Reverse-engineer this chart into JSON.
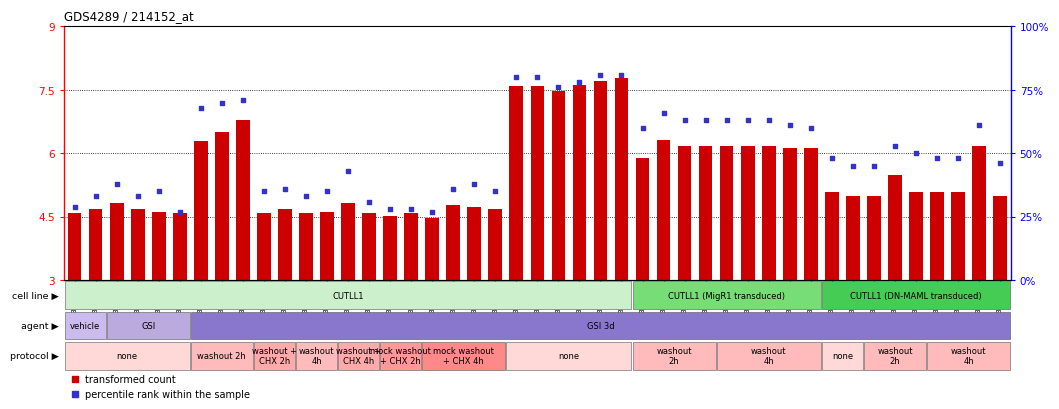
{
  "title": "GDS4289 / 214152_at",
  "ylim": [
    3,
    9
  ],
  "yticks": [
    3,
    4.5,
    6,
    7.5,
    9
  ],
  "ytick_labels": [
    "3",
    "4.5",
    "6",
    "7.5",
    "9"
  ],
  "right_yticks": [
    0,
    25,
    50,
    75,
    100
  ],
  "right_ytick_labels": [
    "0%",
    "25%",
    "50%",
    "75%",
    "100%"
  ],
  "samples": [
    "GSM731500",
    "GSM731501",
    "GSM731502",
    "GSM731503",
    "GSM731504",
    "GSM731505",
    "GSM731518",
    "GSM731519",
    "GSM731520",
    "GSM731506",
    "GSM731507",
    "GSM731508",
    "GSM731509",
    "GSM731510",
    "GSM731511",
    "GSM731512",
    "GSM731513",
    "GSM731514",
    "GSM731515",
    "GSM731516",
    "GSM731517",
    "GSM731521",
    "GSM731522",
    "GSM731523",
    "GSM731524",
    "GSM731525",
    "GSM731526",
    "GSM731527",
    "GSM731528",
    "GSM731529",
    "GSM731531",
    "GSM731532",
    "GSM731533",
    "GSM731534",
    "GSM731535",
    "GSM731536",
    "GSM731537",
    "GSM731538",
    "GSM731539",
    "GSM731540",
    "GSM731541",
    "GSM731542",
    "GSM731543",
    "GSM731544",
    "GSM731545"
  ],
  "bar_values": [
    4.58,
    4.68,
    4.82,
    4.68,
    4.62,
    4.58,
    6.28,
    6.5,
    6.78,
    4.58,
    4.68,
    4.58,
    4.62,
    4.82,
    4.58,
    4.52,
    4.58,
    4.48,
    4.78,
    4.72,
    4.68,
    7.58,
    7.58,
    7.48,
    7.62,
    7.72,
    7.78,
    5.88,
    6.32,
    6.18,
    6.18,
    6.18,
    6.18,
    6.18,
    6.12,
    6.12,
    5.08,
    4.98,
    4.98,
    5.48,
    5.08,
    5.08,
    5.08,
    6.18,
    4.98
  ],
  "percentile_values": [
    29,
    33,
    38,
    33,
    35,
    27,
    68,
    70,
    71,
    35,
    36,
    33,
    35,
    43,
    31,
    28,
    28,
    27,
    36,
    38,
    35,
    80,
    80,
    76,
    78,
    81,
    81,
    60,
    66,
    63,
    63,
    63,
    63,
    63,
    61,
    60,
    48,
    45,
    45,
    53,
    50,
    48,
    48,
    61,
    46
  ],
  "bar_color": "#cc0000",
  "percentile_color": "#3333cc",
  "bar_bottom": 3.0,
  "grid_values": [
    4.5,
    6.0,
    7.5
  ],
  "cell_line_regions": [
    {
      "label": "CUTLL1",
      "start": 0,
      "end": 27,
      "color": "#ccf0cc"
    },
    {
      "label": "CUTLL1 (MigR1 transduced)",
      "start": 27,
      "end": 36,
      "color": "#77dd77"
    },
    {
      "label": "CUTLL1 (DN-MAML transduced)",
      "start": 36,
      "end": 45,
      "color": "#44cc55"
    }
  ],
  "agent_regions": [
    {
      "label": "vehicle",
      "start": 0,
      "end": 2,
      "color": "#ccbbee"
    },
    {
      "label": "GSI",
      "start": 2,
      "end": 6,
      "color": "#bbaadd"
    },
    {
      "label": "GSI 3d",
      "start": 6,
      "end": 45,
      "color": "#8877cc"
    }
  ],
  "protocol_regions": [
    {
      "label": "none",
      "start": 0,
      "end": 6,
      "color": "#ffd8d8"
    },
    {
      "label": "washout 2h",
      "start": 6,
      "end": 9,
      "color": "#ffbbbb"
    },
    {
      "label": "washout +\nCHX 2h",
      "start": 9,
      "end": 11,
      "color": "#ffaaaa"
    },
    {
      "label": "washout\n4h",
      "start": 11,
      "end": 13,
      "color": "#ffbbbb"
    },
    {
      "label": "washout +\nCHX 4h",
      "start": 13,
      "end": 15,
      "color": "#ffaaaa"
    },
    {
      "label": "mock washout\n+ CHX 2h",
      "start": 15,
      "end": 17,
      "color": "#ff9999"
    },
    {
      "label": "mock washout\n+ CHX 4h",
      "start": 17,
      "end": 21,
      "color": "#ff8888"
    },
    {
      "label": "none",
      "start": 21,
      "end": 27,
      "color": "#ffd8d8"
    },
    {
      "label": "washout\n2h",
      "start": 27,
      "end": 31,
      "color": "#ffbbbb"
    },
    {
      "label": "washout\n4h",
      "start": 31,
      "end": 36,
      "color": "#ffbbbb"
    },
    {
      "label": "none",
      "start": 36,
      "end": 38,
      "color": "#ffd8d8"
    },
    {
      "label": "washout\n2h",
      "start": 38,
      "end": 41,
      "color": "#ffbbbb"
    },
    {
      "label": "washout\n4h",
      "start": 41,
      "end": 45,
      "color": "#ffbbbb"
    }
  ]
}
